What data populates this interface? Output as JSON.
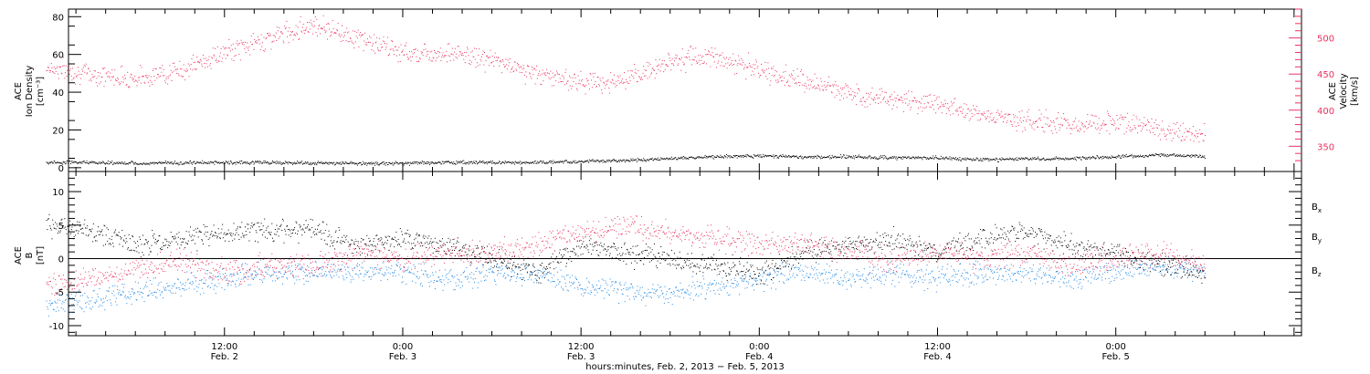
{
  "chart_data": [
    {
      "type": "scatter",
      "panel": "top",
      "ylabel_left": [
        "ACE",
        "Ion Density",
        "[cm⁻³]"
      ],
      "ylabel_right": [
        "ACE",
        "Velocity",
        "[km/s]"
      ],
      "left_ticks": [
        "80",
        "60",
        "40",
        "20",
        "0"
      ],
      "right_ticks": [
        "500",
        "450",
        "400",
        "350"
      ],
      "ylim_left": [
        -2,
        84
      ],
      "ylim_right": [
        315,
        540
      ],
      "colors": {
        "density": "#000000",
        "velocity": "#e8325f"
      },
      "series": [
        {
          "axis": "left",
          "x": [
            0,
            3,
            6,
            9,
            12,
            15,
            18,
            21,
            24,
            27,
            30,
            33,
            36,
            39,
            42,
            45,
            48,
            51,
            54,
            57,
            60,
            63,
            66,
            69,
            72,
            75,
            78
          ],
          "values": [
            3,
            3,
            2.5,
            2.8,
            3,
            3,
            2.5,
            2.5,
            2.5,
            3,
            3,
            3,
            3.5,
            4,
            5,
            6,
            6.5,
            6,
            6,
            5.5,
            5.5,
            4.5,
            5,
            5,
            6,
            7,
            6
          ]
        },
        {
          "axis": "right",
          "x": [
            0,
            3,
            6,
            9,
            12,
            15,
            18,
            21,
            24,
            27,
            30,
            33,
            36,
            39,
            42,
            45,
            48,
            51,
            54,
            57,
            60,
            63,
            66,
            69,
            72,
            75,
            78
          ],
          "values": [
            460,
            450,
            445,
            455,
            480,
            500,
            520,
            500,
            480,
            480,
            470,
            450,
            440,
            440,
            470,
            475,
            455,
            440,
            425,
            415,
            410,
            395,
            385,
            380,
            385,
            375,
            365
          ]
        }
      ]
    },
    {
      "type": "scatter",
      "panel": "bottom",
      "ylabel_left": [
        "ACE",
        "B",
        "[nT]"
      ],
      "ticks": [
        "10",
        "5",
        "0",
        "-5",
        "-10"
      ],
      "ylim": [
        -11.5,
        13
      ],
      "legend": [
        {
          "name": "B",
          "sub": "x",
          "color": "#000000"
        },
        {
          "name": "B",
          "sub": "y",
          "color": "#1e88e5"
        },
        {
          "name": "B",
          "sub": "z",
          "color": "#e8325f"
        }
      ],
      "series": [
        {
          "name": "Bx",
          "x": [
            0,
            3,
            6,
            9,
            12,
            15,
            18,
            21,
            24,
            27,
            30,
            33,
            36,
            39,
            42,
            45,
            48,
            51,
            54,
            57,
            60,
            63,
            66,
            69,
            72,
            75,
            78
          ],
          "values": [
            5,
            4,
            2,
            3,
            4,
            4.5,
            4,
            2,
            3,
            2,
            0,
            -2,
            2,
            1,
            0,
            -1,
            -2,
            1,
            2,
            3,
            1,
            3,
            4,
            2,
            1,
            -1,
            -2
          ]
        },
        {
          "name": "By",
          "x": [
            0,
            3,
            6,
            9,
            12,
            15,
            18,
            21,
            24,
            27,
            30,
            33,
            36,
            39,
            42,
            45,
            48,
            51,
            54,
            57,
            60,
            63,
            66,
            69,
            72,
            75,
            78
          ],
          "values": [
            -7,
            -6,
            -5,
            -4,
            -3,
            -2,
            -2,
            -2,
            -2,
            -3,
            -2,
            -2,
            -4,
            -5,
            -5,
            -4,
            -3,
            -2,
            -3,
            -2,
            -3,
            -2,
            -2,
            -3,
            -2,
            -1,
            -2
          ]
        },
        {
          "name": "Bz",
          "x": [
            0,
            3,
            6,
            9,
            12,
            15,
            18,
            21,
            24,
            27,
            30,
            33,
            36,
            39,
            42,
            45,
            48,
            51,
            54,
            57,
            60,
            63,
            66,
            69,
            72,
            75,
            78
          ],
          "values": [
            -4,
            -3,
            -2,
            0,
            -2,
            -1,
            -1,
            1,
            0,
            1,
            1,
            2,
            4,
            5,
            4,
            3,
            2,
            2,
            1,
            0,
            1,
            0,
            1,
            -1,
            0,
            1,
            -1
          ]
        }
      ],
      "zero_line": true
    }
  ],
  "xaxis": {
    "ticks": [
      {
        "x": 12,
        "time": "12:00",
        "date": "Feb. 2"
      },
      {
        "x": 24,
        "time": "0:00",
        "date": "Feb. 3"
      },
      {
        "x": 36,
        "time": "12:00",
        "date": "Feb. 3"
      },
      {
        "x": 48,
        "time": "0:00",
        "date": "Feb. 4"
      },
      {
        "x": 60,
        "time": "12:00",
        "date": "Feb. 4"
      },
      {
        "x": 72,
        "time": "0:00",
        "date": "Feb. 5"
      }
    ],
    "xlim": [
      1.5,
      84.5
    ],
    "xlabel": "hours:minutes, Feb.  2, 2013 − Feb.  5, 2013"
  }
}
